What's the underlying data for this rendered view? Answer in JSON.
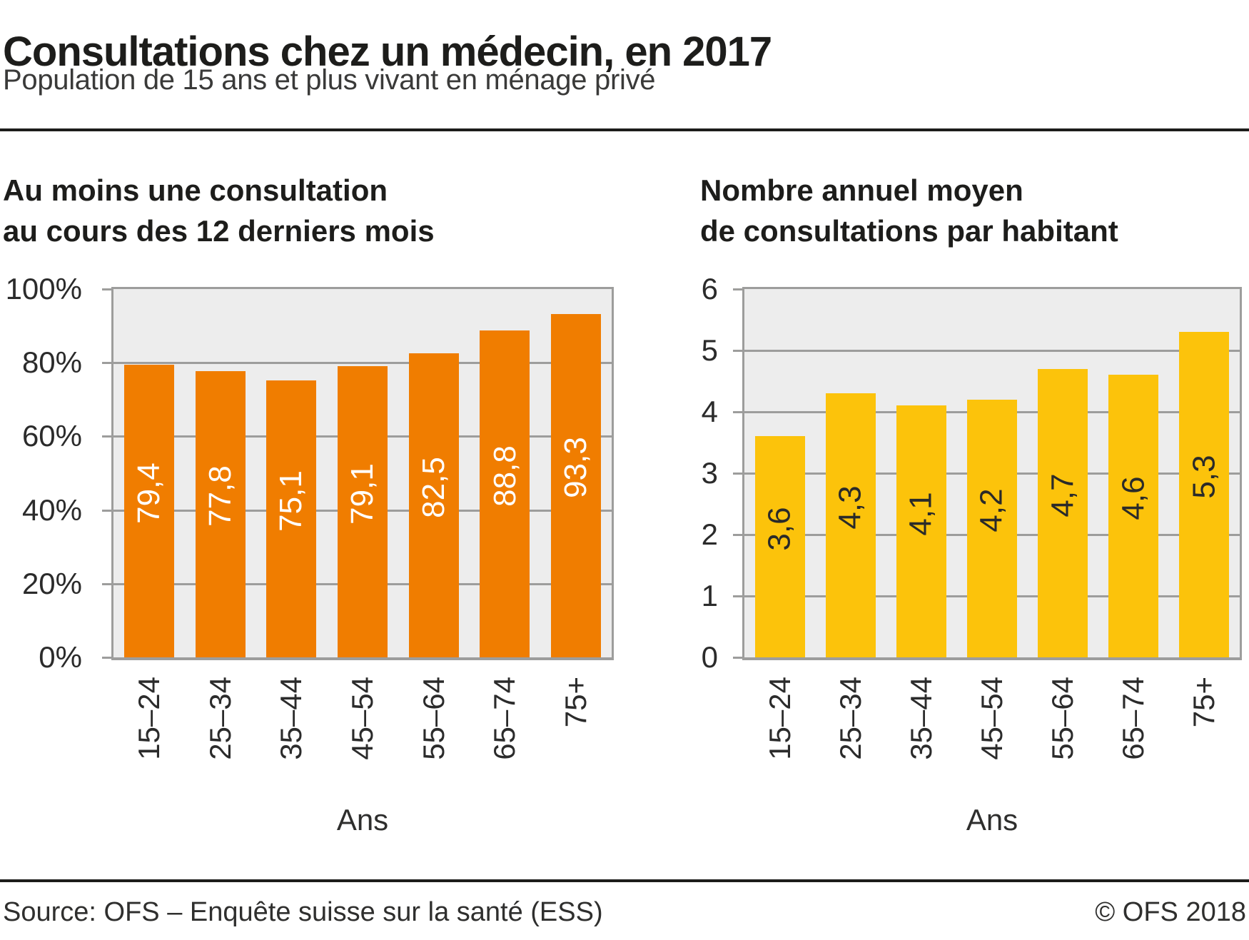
{
  "header": {
    "title": "Consultations chez un médecin, en 2017",
    "subtitle": "Population de 15 ans et plus vivant en ménage privé"
  },
  "chart_data": [
    {
      "type": "bar",
      "title_lines": [
        "Au moins une consultation",
        "au cours des 12 derniers mois"
      ],
      "categories": [
        "15–24",
        "25–34",
        "35–44",
        "45–54",
        "55–64",
        "65–74",
        "75+"
      ],
      "values": [
        79.4,
        77.8,
        75.1,
        79.1,
        82.5,
        88.8,
        93.3
      ],
      "value_labels": [
        "79,4",
        "77,8",
        "75,1",
        "79,1",
        "82,5",
        "88,8",
        "93,3"
      ],
      "xlabel": "Ans",
      "ylabel": "",
      "ylim": [
        0,
        100
      ],
      "yticks": [
        {
          "value": 0,
          "label": "0%"
        },
        {
          "value": 20,
          "label": "20%"
        },
        {
          "value": 40,
          "label": "40%"
        },
        {
          "value": 60,
          "label": "60%"
        },
        {
          "value": 80,
          "label": "80%"
        },
        {
          "value": 100,
          "label": "100%"
        }
      ],
      "grid": true,
      "legend": false,
      "bar_color": "#f07d00",
      "value_label_color": "#ffffff"
    },
    {
      "type": "bar",
      "title_lines": [
        "Nombre annuel moyen",
        "de consultations par habitant"
      ],
      "categories": [
        "15–24",
        "25–34",
        "35–44",
        "45–54",
        "55–64",
        "65–74",
        "75+"
      ],
      "values": [
        3.6,
        4.3,
        4.1,
        4.2,
        4.7,
        4.6,
        5.3
      ],
      "value_labels": [
        "3,6",
        "4,3",
        "4,1",
        "4,2",
        "4,7",
        "4,6",
        "5,3"
      ],
      "xlabel": "Ans",
      "ylabel": "",
      "ylim": [
        0,
        6
      ],
      "yticks": [
        {
          "value": 0,
          "label": "0"
        },
        {
          "value": 1,
          "label": "1"
        },
        {
          "value": 2,
          "label": "2"
        },
        {
          "value": 3,
          "label": "3"
        },
        {
          "value": 4,
          "label": "4"
        },
        {
          "value": 5,
          "label": "5"
        },
        {
          "value": 6,
          "label": "6"
        }
      ],
      "grid": true,
      "legend": false,
      "bar_color": "#fcc30b",
      "value_label_color": "#2a2a29"
    }
  ],
  "footer": {
    "source": "Source: OFS – Enquête suisse sur la santé (ESS)",
    "copyright": "© OFS 2018"
  }
}
